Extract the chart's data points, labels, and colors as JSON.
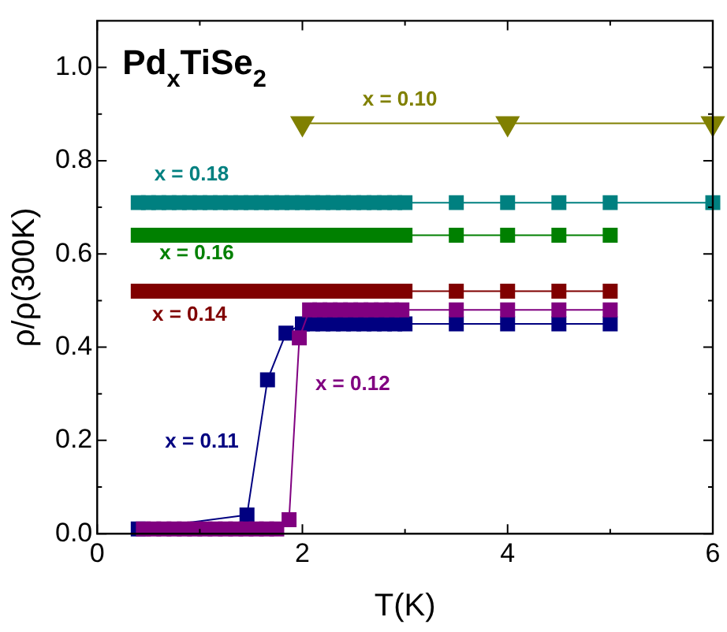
{
  "chart_data": {
    "type": "line",
    "title": "Pd$_{x}$TiSe$_{2}$",
    "xlabel": "T(K)",
    "ylabel": "ρ/ρ(300K)",
    "xlim": [
      0,
      6
    ],
    "xticks": [
      0,
      {
        "value": 1,
        "label": null
      },
      2,
      {
        "value": 3,
        "label": null
      },
      4,
      {
        "value": 5,
        "label": null
      },
      6
    ],
    "ylim": [
      0,
      1.1
    ],
    "yticks": [
      {
        "value": 0,
        "label": "0.0"
      },
      {
        "value": 0.1,
        "label": null
      },
      {
        "value": 0.2,
        "label": "0.2"
      },
      {
        "value": 0.3,
        "label": null
      },
      {
        "value": 0.4,
        "label": "0.4"
      },
      {
        "value": 0.5,
        "label": null
      },
      {
        "value": 0.6,
        "label": "0.6"
      },
      {
        "value": 0.7,
        "label": null
      },
      {
        "value": 0.8,
        "label": "0.8"
      },
      {
        "value": 0.9,
        "label": null
      },
      {
        "value": 1.0,
        "label": "1.0"
      }
    ],
    "grid": false,
    "legend": false,
    "line_style": "solid",
    "series": [
      {
        "name": "x = 0.10",
        "color": "#808000",
        "marker": "triangle",
        "x": [
          2,
          4,
          6
        ],
        "values": [
          0.88,
          0.88,
          0.88
        ]
      },
      {
        "name": "x = 0.18",
        "color": "#008080",
        "marker": "square",
        "x": [
          0.4,
          0.5,
          0.6,
          0.7,
          0.8,
          0.9,
          1.0,
          1.1,
          1.2,
          1.3,
          1.4,
          1.5,
          1.6,
          1.7,
          1.8,
          1.9,
          2.0,
          2.1,
          2.2,
          2.3,
          2.4,
          2.5,
          2.6,
          2.7,
          2.8,
          2.9,
          3.0,
          3.5,
          4,
          4.5,
          5,
          6
        ],
        "values": [
          0.71,
          0.71,
          0.71,
          0.71,
          0.71,
          0.71,
          0.71,
          0.71,
          0.71,
          0.71,
          0.71,
          0.71,
          0.71,
          0.71,
          0.71,
          0.71,
          0.71,
          0.71,
          0.71,
          0.71,
          0.71,
          0.71,
          0.71,
          0.71,
          0.71,
          0.71,
          0.71,
          0.71,
          0.71,
          0.71,
          0.71,
          0.71
        ]
      },
      {
        "name": "x = 0.16",
        "color": "#008000",
        "marker": "square",
        "x": [
          0.4,
          0.5,
          0.6,
          0.7,
          0.8,
          0.9,
          1.0,
          1.1,
          1.2,
          1.3,
          1.4,
          1.5,
          1.6,
          1.7,
          1.8,
          1.9,
          2.0,
          2.1,
          2.2,
          2.3,
          2.4,
          2.5,
          2.6,
          2.7,
          2.8,
          2.9,
          3.0,
          3.5,
          4,
          4.5,
          5
        ],
        "values": [
          0.64,
          0.64,
          0.64,
          0.64,
          0.64,
          0.64,
          0.64,
          0.64,
          0.64,
          0.64,
          0.64,
          0.64,
          0.64,
          0.64,
          0.64,
          0.64,
          0.64,
          0.64,
          0.64,
          0.64,
          0.64,
          0.64,
          0.64,
          0.64,
          0.64,
          0.64,
          0.64,
          0.64,
          0.64,
          0.64,
          0.64
        ]
      },
      {
        "name": "x = 0.14",
        "color": "#800000",
        "marker": "square",
        "x": [
          0.4,
          0.5,
          0.6,
          0.7,
          0.8,
          0.9,
          1.0,
          1.1,
          1.2,
          1.3,
          1.4,
          1.5,
          1.6,
          1.7,
          1.8,
          1.9,
          2.0,
          2.1,
          2.2,
          2.3,
          2.4,
          2.5,
          2.6,
          2.7,
          2.8,
          2.9,
          3.0,
          3.5,
          4,
          4.5,
          5
        ],
        "values": [
          0.52,
          0.52,
          0.52,
          0.52,
          0.52,
          0.52,
          0.52,
          0.52,
          0.52,
          0.52,
          0.52,
          0.52,
          0.52,
          0.52,
          0.52,
          0.52,
          0.52,
          0.52,
          0.52,
          0.52,
          0.52,
          0.52,
          0.52,
          0.52,
          0.52,
          0.52,
          0.52,
          0.52,
          0.52,
          0.52,
          0.52
        ]
      },
      {
        "name": "x = 0.11",
        "color": "#000080",
        "marker": "square",
        "x": [
          0.4,
          1.46,
          1.66,
          1.84,
          2.0,
          2.1,
          2.2,
          2.3,
          2.4,
          2.5,
          2.6,
          2.7,
          2.8,
          2.9,
          3.0,
          3.5,
          4,
          4.5,
          5
        ],
        "values": [
          0.01,
          0.04,
          0.33,
          0.43,
          0.45,
          0.45,
          0.45,
          0.45,
          0.45,
          0.45,
          0.45,
          0.45,
          0.45,
          0.45,
          0.45,
          0.45,
          0.45,
          0.45,
          0.45
        ]
      },
      {
        "name": "x = 0.12",
        "color": "#800080",
        "marker": "square",
        "x": [
          0.45,
          0.55,
          0.65,
          0.75,
          0.85,
          0.95,
          1.05,
          1.15,
          1.25,
          1.35,
          1.45,
          1.55,
          1.65,
          1.75,
          1.87,
          1.97,
          2.07,
          2.17,
          2.27,
          2.37,
          2.47,
          2.57,
          2.67,
          2.77,
          2.87,
          2.97,
          3.5,
          4,
          4.5,
          5
        ],
        "values": [
          0.01,
          0.01,
          0.01,
          0.01,
          0.01,
          0.01,
          0.01,
          0.01,
          0.01,
          0.01,
          0.01,
          0.01,
          0.01,
          0.01,
          0.03,
          0.42,
          0.48,
          0.48,
          0.48,
          0.48,
          0.48,
          0.48,
          0.48,
          0.48,
          0.48,
          0.48,
          0.48,
          0.48,
          0.48,
          0.48
        ]
      }
    ]
  }
}
